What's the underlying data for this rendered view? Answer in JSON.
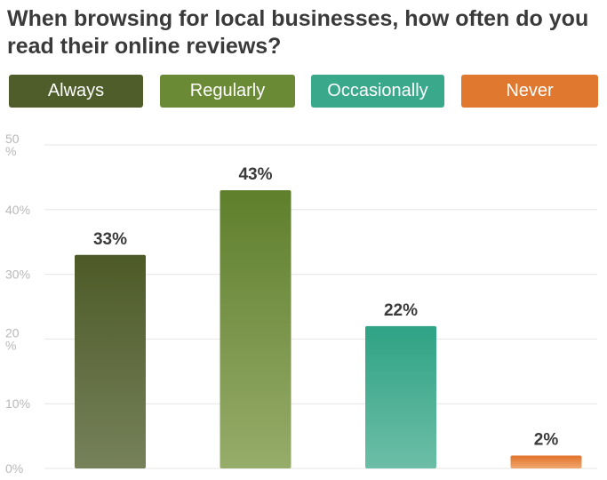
{
  "title": "When browsing for local businesses, how often do you read their online reviews?",
  "legend": [
    {
      "label": "Always",
      "color": "#4e5d2a"
    },
    {
      "label": "Regularly",
      "color": "#6b8a35"
    },
    {
      "label": "Occasionally",
      "color": "#3aa88a"
    },
    {
      "label": "Never",
      "color": "#e0782f"
    }
  ],
  "chart_data": {
    "type": "bar",
    "title": "When browsing for local businesses, how often do you read their online reviews?",
    "categories": [
      "Always",
      "Regularly",
      "Occasionally",
      "Never"
    ],
    "values": [
      33,
      43,
      22,
      2
    ],
    "data_labels": [
      "33%",
      "43%",
      "22%",
      "2%"
    ],
    "colors": [
      {
        "top": "#4d5a27",
        "bottom": "#76815a"
      },
      {
        "top": "#5f7f2c",
        "bottom": "#96ac6a"
      },
      {
        "top": "#2fa285",
        "bottom": "#6cbea6"
      },
      {
        "top": "#e0712a",
        "bottom": "#f1a86e"
      }
    ],
    "yticks": [
      {
        "value": 0,
        "label": "0%"
      },
      {
        "value": 10,
        "label": "10%"
      },
      {
        "value": 20,
        "label": "20\n%"
      },
      {
        "value": 30,
        "label": "30%"
      },
      {
        "value": 40,
        "label": "40%"
      },
      {
        "value": 50,
        "label": "50\n%"
      }
    ],
    "ylim": [
      0,
      50
    ],
    "grid": true,
    "legend_position": "top"
  }
}
